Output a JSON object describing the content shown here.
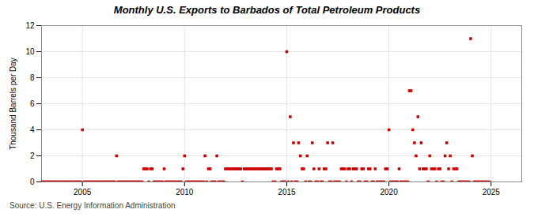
{
  "chart_data": {
    "type": "scatter",
    "title": "Monthly U.S. Exports to Barbados of Total Petroleum Products",
    "ylabel": "Thousand Barrels per Day",
    "source": "Source: U.S. Energy Information Administration",
    "color": "#cc0000",
    "marker": "square",
    "grid": true,
    "xlim": [
      2003.0,
      2026.5
    ],
    "xticks": [
      2005,
      2010,
      2015,
      2020,
      2025
    ],
    "ylim": [
      0,
      12
    ],
    "yticks": [
      0,
      2,
      4,
      6,
      8,
      10,
      12
    ],
    "x": [
      2003.0,
      2003.08,
      2003.17,
      2003.25,
      2003.33,
      2003.42,
      2003.5,
      2003.58,
      2003.67,
      2003.75,
      2003.83,
      2003.92,
      2004.0,
      2004.08,
      2004.17,
      2004.25,
      2004.33,
      2004.42,
      2004.5,
      2004.58,
      2004.67,
      2004.75,
      2004.83,
      2004.92,
      2005.0,
      2005.08,
      2005.17,
      2005.25,
      2005.33,
      2005.42,
      2005.5,
      2005.58,
      2005.67,
      2005.75,
      2005.83,
      2005.92,
      2006.0,
      2006.08,
      2006.17,
      2006.25,
      2006.33,
      2006.42,
      2006.5,
      2006.58,
      2006.67,
      2006.75,
      2006.83,
      2006.92,
      2007.0,
      2007.08,
      2007.17,
      2007.25,
      2007.33,
      2007.42,
      2007.5,
      2007.58,
      2007.67,
      2007.75,
      2007.83,
      2007.92,
      2008.0,
      2008.08,
      2008.17,
      2008.25,
      2008.33,
      2008.42,
      2008.5,
      2008.58,
      2008.67,
      2008.75,
      2008.83,
      2008.92,
      2009.0,
      2009.08,
      2009.17,
      2009.25,
      2009.33,
      2009.42,
      2009.5,
      2009.58,
      2009.67,
      2009.75,
      2009.83,
      2009.92,
      2010.0,
      2010.08,
      2010.17,
      2010.25,
      2010.33,
      2010.42,
      2010.5,
      2010.58,
      2010.67,
      2010.75,
      2010.83,
      2010.92,
      2011.0,
      2011.08,
      2011.17,
      2011.25,
      2011.33,
      2011.42,
      2011.5,
      2011.58,
      2011.67,
      2011.75,
      2011.83,
      2011.92,
      2012.0,
      2012.08,
      2012.17,
      2012.25,
      2012.33,
      2012.42,
      2012.5,
      2012.58,
      2012.67,
      2012.75,
      2012.83,
      2012.92,
      2013.0,
      2013.08,
      2013.17,
      2013.25,
      2013.33,
      2013.42,
      2013.5,
      2013.58,
      2013.67,
      2013.75,
      2013.83,
      2013.92,
      2014.0,
      2014.08,
      2014.17,
      2014.25,
      2014.33,
      2014.42,
      2014.5,
      2014.58,
      2014.67,
      2014.75,
      2014.83,
      2014.92,
      2015.0,
      2015.08,
      2015.17,
      2015.25,
      2015.33,
      2015.42,
      2015.5,
      2015.58,
      2015.67,
      2015.75,
      2015.83,
      2015.92,
      2016.0,
      2016.08,
      2016.17,
      2016.25,
      2016.33,
      2016.42,
      2016.5,
      2016.58,
      2016.67,
      2016.75,
      2016.83,
      2016.92,
      2017.0,
      2017.08,
      2017.17,
      2017.25,
      2017.33,
      2017.42,
      2017.5,
      2017.58,
      2017.67,
      2017.75,
      2017.83,
      2017.92,
      2018.0,
      2018.08,
      2018.17,
      2018.25,
      2018.33,
      2018.42,
      2018.5,
      2018.58,
      2018.67,
      2018.75,
      2018.83,
      2018.92,
      2019.0,
      2019.08,
      2019.17,
      2019.25,
      2019.33,
      2019.42,
      2019.5,
      2019.58,
      2019.67,
      2019.75,
      2019.83,
      2019.92,
      2020.0,
      2020.08,
      2020.17,
      2020.25,
      2020.33,
      2020.42,
      2020.5,
      2020.58,
      2020.67,
      2020.75,
      2020.83,
      2020.92,
      2021.0,
      2021.08,
      2021.17,
      2021.25,
      2021.33,
      2021.42,
      2021.5,
      2021.58,
      2021.67,
      2021.75,
      2021.83,
      2021.92,
      2022.0,
      2022.08,
      2022.17,
      2022.25,
      2022.33,
      2022.42,
      2022.5,
      2022.58,
      2022.67,
      2022.75,
      2022.83,
      2022.92,
      2023.0,
      2023.08,
      2023.17,
      2023.25,
      2023.33,
      2023.42,
      2023.5,
      2023.58,
      2023.67,
      2023.75,
      2023.83,
      2023.92,
      2024.0,
      2024.08,
      2024.17,
      2024.25,
      2024.33,
      2024.42,
      2024.5,
      2024.58,
      2024.67,
      2024.75,
      2024.83,
      2024.92
    ],
    "values": [
      0,
      0,
      0,
      0,
      0,
      0,
      0,
      0,
      0,
      0,
      0,
      0,
      0,
      0,
      0,
      0,
      0,
      0,
      0,
      0,
      0,
      0,
      0,
      0,
      4,
      0,
      0,
      0,
      0,
      0,
      0,
      0,
      0,
      0,
      0,
      0,
      0,
      0,
      0,
      0,
      0,
      0,
      0,
      0,
      2,
      0,
      0,
      0,
      0,
      0,
      0,
      0,
      0,
      0,
      0,
      0,
      0,
      0,
      0,
      0,
      1,
      1,
      1,
      0,
      1,
      1,
      0,
      0,
      0,
      0,
      0,
      0,
      1,
      0,
      0,
      0,
      0,
      0,
      0,
      0,
      0,
      0,
      0,
      1,
      2,
      0,
      0,
      0,
      0,
      0,
      0,
      0,
      0,
      0,
      0,
      0,
      2,
      0,
      1,
      1,
      0,
      0,
      0,
      2,
      0,
      0,
      0,
      0,
      1,
      1,
      1,
      1,
      1,
      1,
      1,
      1,
      1,
      1,
      0,
      1,
      1,
      1,
      1,
      1,
      1,
      1,
      1,
      1,
      1,
      1,
      1,
      1,
      1,
      1,
      1,
      1,
      0,
      0,
      1,
      1,
      1,
      0,
      0,
      0,
      10,
      0,
      5,
      0,
      3,
      0,
      0,
      3,
      2,
      1,
      1,
      0,
      2,
      0,
      0,
      3,
      1,
      0,
      0,
      1,
      0,
      0,
      1,
      1,
      3,
      0,
      0,
      3,
      0,
      0,
      0,
      0,
      1,
      1,
      1,
      0,
      1,
      1,
      0,
      1,
      1,
      1,
      0,
      0,
      1,
      1,
      0,
      0,
      1,
      1,
      0,
      0,
      1,
      0,
      0,
      0,
      0,
      0,
      1,
      1,
      4,
      0,
      0,
      0,
      0,
      0,
      1,
      0,
      0,
      0,
      0,
      0,
      7,
      7,
      4,
      3,
      2,
      5,
      1,
      3,
      1,
      1,
      1,
      0,
      2,
      1,
      1,
      1,
      0,
      1,
      1,
      0,
      0,
      2,
      3,
      1,
      2,
      0,
      1,
      1,
      1,
      0,
      0,
      0,
      0,
      0,
      0,
      0,
      11,
      2,
      0,
      0,
      0,
      0,
      0,
      0,
      0,
      0,
      0,
      0
    ]
  }
}
